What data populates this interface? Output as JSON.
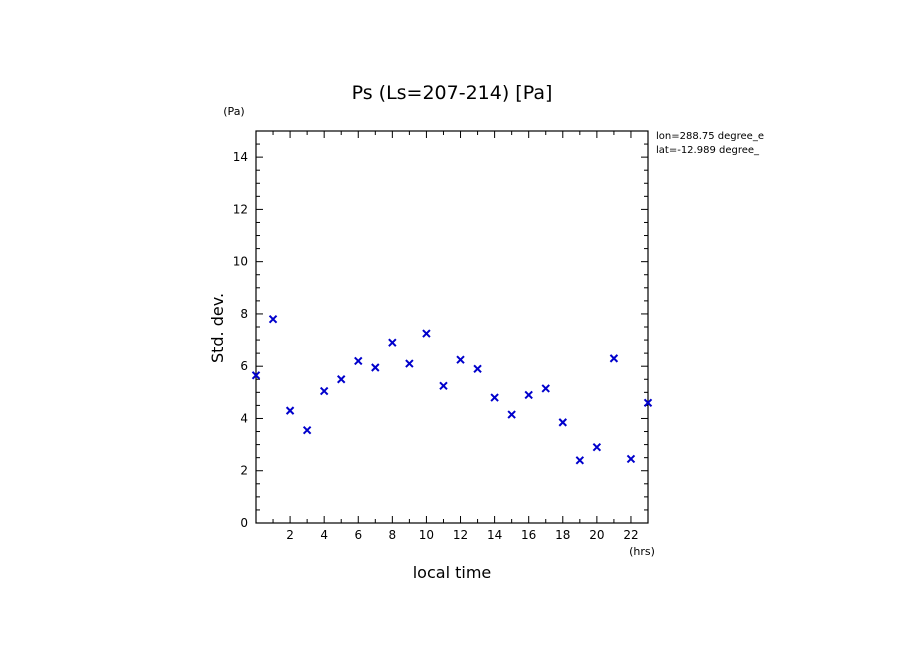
{
  "chart_data": {
    "type": "scatter",
    "title": "Ps (Ls=207-214) [Pa]",
    "xlabel": "local time",
    "ylabel": "Std. dev.",
    "x_unit": "(hrs)",
    "y_unit": "(Pa)",
    "xlim": [
      0,
      23
    ],
    "ylim": [
      0,
      15
    ],
    "x_ticks": [
      2,
      4,
      6,
      8,
      10,
      12,
      14,
      16,
      18,
      20,
      22
    ],
    "y_ticks": [
      0,
      2,
      4,
      6,
      8,
      10,
      12,
      14
    ],
    "marker": "x",
    "color": "#0000cc",
    "grid": false,
    "annotations": [
      "lon=288.75 degree_e",
      "lat=-12.989 degree_"
    ],
    "series": [
      {
        "x": [
          0,
          1,
          2,
          3,
          4,
          5,
          6,
          7,
          8,
          9,
          10,
          11,
          12,
          13,
          14,
          15,
          16,
          17,
          18,
          19,
          20,
          21,
          22,
          23
        ],
        "y": [
          5.65,
          7.8,
          4.3,
          3.55,
          5.05,
          5.5,
          6.2,
          5.95,
          6.9,
          6.1,
          7.25,
          5.25,
          6.25,
          5.9,
          4.8,
          4.15,
          4.9,
          5.15,
          3.85,
          2.4,
          2.9,
          6.3,
          2.45,
          4.6
        ]
      }
    ]
  }
}
